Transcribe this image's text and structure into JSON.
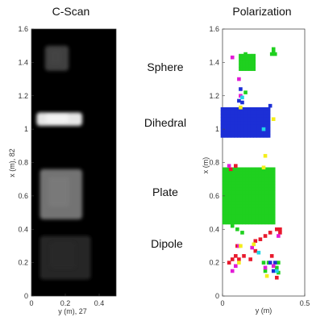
{
  "figure": {
    "mechanism_labels": [
      "Sphere",
      "Dihedral",
      "Plate",
      "Dipole"
    ]
  },
  "chart_data": [
    {
      "type": "heatmap",
      "title": "C-Scan",
      "xlabel": "y (m), 27",
      "ylabel": "x (m), 82",
      "xlim": [
        0,
        0.5
      ],
      "ylim": [
        0,
        1.6
      ],
      "x_ticks": [
        "0",
        "0.2",
        "0.4"
      ],
      "x_tick_values": [
        0,
        0.2,
        0.4
      ],
      "y_ticks": [
        "0",
        "0.2",
        "0.4",
        "0.6",
        "0.8",
        "1",
        "1.2",
        "1.4",
        "1.6"
      ],
      "y_tick_values": [
        0,
        0.2,
        0.4,
        0.6,
        0.8,
        1.0,
        1.2,
        1.4,
        1.6
      ],
      "grid": false,
      "colormap": "grayscale",
      "bright_regions": [
        {
          "name": "Dihedral",
          "x_range": [
            1.02,
            1.1
          ],
          "y_range": [
            0.03,
            0.3
          ],
          "level": 0.9
        },
        {
          "name": "Plate",
          "x_range": [
            0.46,
            0.76
          ],
          "y_range": [
            0.05,
            0.3
          ],
          "level": 0.45
        },
        {
          "name": "Sphere",
          "x_range": [
            1.35,
            1.5
          ],
          "y_range": [
            0.08,
            0.22
          ],
          "level": 0.25
        },
        {
          "name": "Dipole",
          "x_range": [
            0.1,
            0.36
          ],
          "y_range": [
            0.05,
            0.35
          ],
          "level": 0.15
        }
      ]
    },
    {
      "type": "scatter",
      "title": "Polarization",
      "xlabel": "y (m)",
      "ylabel": "x (m)",
      "xlim": [
        0,
        0.5
      ],
      "ylim": [
        0,
        1.6
      ],
      "x_ticks": [
        "0",
        "0.5"
      ],
      "x_tick_values": [
        0,
        0.5
      ],
      "y_ticks": [
        "0",
        "0.2",
        "0.4",
        "0.6",
        "0.8",
        "1",
        "1.2",
        "1.4",
        "1.6"
      ],
      "y_tick_values": [
        0,
        0.2,
        0.4,
        0.6,
        0.8,
        1.0,
        1.2,
        1.4,
        1.6
      ],
      "grid": false,
      "marker": "square",
      "colors": {
        "green": "#1fd01f",
        "blue": "#1c2fd6",
        "red": "#e8192c",
        "magenta": "#e21bd6",
        "yellow": "#f4ee1a",
        "cyan": "#20d4e6"
      },
      "series": [
        {
          "color": "green",
          "regions": [
            {
              "x_range": [
                0.44,
                0.76
              ],
              "y_range": [
                0.01,
                0.31
              ],
              "step": 0.02
            },
            {
              "x_range": [
                1.36,
                1.44
              ],
              "y_range": [
                0.11,
                0.2
              ],
              "step": 0.02
            }
          ],
          "points": [
            [
              0.3,
              1.45
            ],
            [
              0.31,
              1.46
            ],
            [
              0.32,
              1.45
            ],
            [
              0.31,
              1.48
            ],
            [
              0.13,
              1.42
            ],
            [
              0.15,
              1.4
            ],
            [
              0.17,
              1.38
            ],
            [
              0.14,
              1.45
            ],
            [
              0.14,
              1.22
            ],
            [
              0.06,
              0.42
            ],
            [
              0.09,
              0.4
            ],
            [
              0.12,
              0.38
            ],
            [
              0.34,
              0.2
            ],
            [
              0.33,
              0.17
            ],
            [
              0.34,
              0.14
            ],
            [
              0.25,
              0.2
            ],
            [
              0.26,
              0.15
            ],
            [
              0.28,
              0.2
            ]
          ]
        },
        {
          "color": "blue",
          "regions": [
            {
              "x_range": [
                0.96,
                1.12
              ],
              "y_range": [
                0.0,
                0.28
              ],
              "step": 0.02
            }
          ],
          "points": [
            [
              0.11,
              1.24
            ],
            [
              0.1,
              1.17
            ],
            [
              0.12,
              1.16
            ],
            [
              0.29,
              1.14
            ],
            [
              0.29,
              0.2
            ],
            [
              0.31,
              0.15
            ],
            [
              0.32,
              0.2
            ]
          ]
        },
        {
          "color": "red",
          "points": [
            [
              0.08,
              0.78
            ],
            [
              0.05,
              0.76
            ],
            [
              0.06,
              0.22
            ],
            [
              0.08,
              0.24
            ],
            [
              0.04,
              0.2
            ],
            [
              0.1,
              0.22
            ],
            [
              0.13,
              0.24
            ],
            [
              0.17,
              0.22
            ],
            [
              0.2,
              0.27
            ],
            [
              0.2,
              0.33
            ],
            [
              0.23,
              0.34
            ],
            [
              0.26,
              0.36
            ],
            [
              0.29,
              0.38
            ],
            [
              0.33,
              0.4
            ],
            [
              0.35,
              0.4
            ],
            [
              0.09,
              0.3
            ],
            [
              0.33,
              0.11
            ],
            [
              0.3,
              0.24
            ],
            [
              0.35,
              0.38
            ]
          ]
        },
        {
          "color": "magenta",
          "points": [
            [
              0.06,
              1.43
            ],
            [
              0.1,
              1.3
            ],
            [
              0.11,
              1.2
            ],
            [
              0.04,
              0.78
            ],
            [
              0.1,
              0.3
            ],
            [
              0.06,
              0.15
            ],
            [
              0.08,
              0.18
            ],
            [
              0.18,
              0.29
            ],
            [
              0.26,
              0.17
            ],
            [
              0.31,
              0.18
            ],
            [
              0.34,
              0.36
            ]
          ]
        },
        {
          "color": "yellow",
          "points": [
            [
              0.11,
              1.13
            ],
            [
              0.26,
              0.84
            ],
            [
              0.25,
              0.77
            ],
            [
              0.31,
              1.06
            ],
            [
              0.11,
              0.3
            ],
            [
              0.19,
              0.31
            ],
            [
              0.27,
              0.12
            ],
            [
              0.1,
              0.2
            ]
          ]
        },
        {
          "color": "cyan",
          "points": [
            [
              0.25,
              1.0
            ],
            [
              0.12,
              1.19
            ],
            [
              0.22,
              0.26
            ],
            [
              0.33,
              0.15
            ]
          ]
        }
      ]
    }
  ]
}
